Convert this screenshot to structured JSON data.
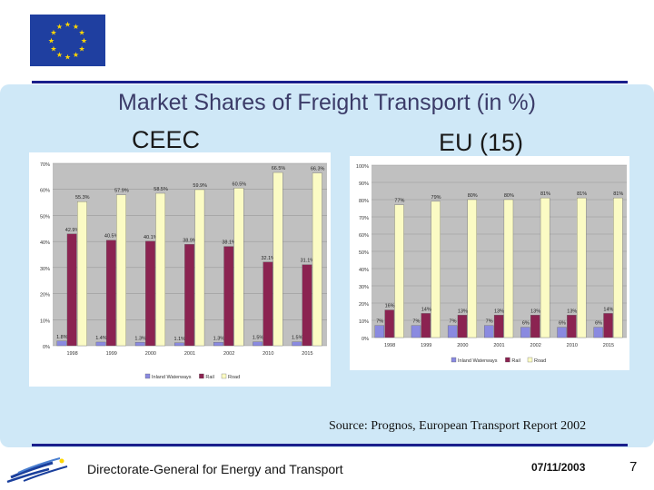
{
  "title": "Market Shares of Freight Transport (in %)",
  "subtitles": {
    "ceec": "CEEC",
    "eu": "EU (15)"
  },
  "source": "Source: Prognos, European Transport Report 2002",
  "footer": {
    "org": "Directorate-General for Energy and Transport",
    "date": "07/11/2003",
    "page": "7"
  },
  "colors": {
    "flag": "#1f3fa0",
    "star": "#ffd700",
    "line": "#1a1f8c",
    "panel": "#cfe8f7",
    "inland": "#8a8ae0",
    "rail": "#8b2351",
    "road": "#fbfbc4",
    "plot_bg": "#c0c0c0"
  },
  "chart_data": [
    {
      "type": "bar",
      "title": "CEEC",
      "categories": [
        "1998",
        "1999",
        "2000",
        "2001",
        "2002",
        "2010",
        "2015"
      ],
      "y_ticks": [
        "0%",
        "10%",
        "20%",
        "30%",
        "40%",
        "50%",
        "60%",
        "70%"
      ],
      "ylim": [
        0,
        70
      ],
      "legend": [
        "Inland Waterways",
        "Rail",
        "Road"
      ],
      "series": [
        {
          "name": "Inland Waterways",
          "values": [
            1.8,
            1.4,
            1.3,
            1.1,
            1.3,
            1.5,
            1.5
          ],
          "labels": [
            "1.8%",
            "1.4%",
            "1.3%",
            "1.1%",
            "1.3%",
            "1.5%",
            "1.5%"
          ]
        },
        {
          "name": "Rail",
          "values": [
            42.9,
            40.5,
            40.1,
            38.9,
            38.1,
            32.1,
            31.1
          ],
          "labels": [
            "42.9%",
            "40.5%",
            "40.1%",
            "38.9%",
            "38.1%",
            "32.1%",
            "31.1%"
          ]
        },
        {
          "name": "Road",
          "values": [
            55.3,
            57.9,
            58.5,
            59.9,
            60.5,
            66.5,
            66.3
          ],
          "labels": [
            "55.3%",
            "57.9%",
            "58.5%",
            "59.9%",
            "60.5%",
            "66.5%",
            "66.3%"
          ]
        }
      ]
    },
    {
      "type": "bar",
      "title": "EU (15)",
      "categories": [
        "1998",
        "1999",
        "2000",
        "2001",
        "2002",
        "2010",
        "2015"
      ],
      "y_ticks": [
        "0%",
        "10%",
        "20%",
        "30%",
        "40%",
        "50%",
        "60%",
        "70%",
        "80%",
        "90%",
        "100%"
      ],
      "ylim": [
        0,
        100
      ],
      "legend": [
        "Inland Waterways",
        "Rail",
        "Road"
      ],
      "series": [
        {
          "name": "Inland Waterways",
          "values": [
            7,
            7,
            7,
            7,
            6,
            6,
            6
          ],
          "labels": [
            "7%",
            "7%",
            "7%",
            "7%",
            "6%",
            "6%",
            "6%"
          ]
        },
        {
          "name": "Rail",
          "values": [
            16,
            14,
            13,
            13,
            13,
            13,
            14
          ],
          "labels": [
            "16%",
            "14%",
            "13%",
            "13%",
            "13%",
            "13%",
            "14%"
          ]
        },
        {
          "name": "Road",
          "values": [
            77,
            79,
            80,
            80,
            81,
            81,
            81
          ],
          "labels": [
            "77%",
            "79%",
            "80%",
            "80%",
            "81%",
            "81%",
            "81%"
          ]
        }
      ]
    }
  ]
}
